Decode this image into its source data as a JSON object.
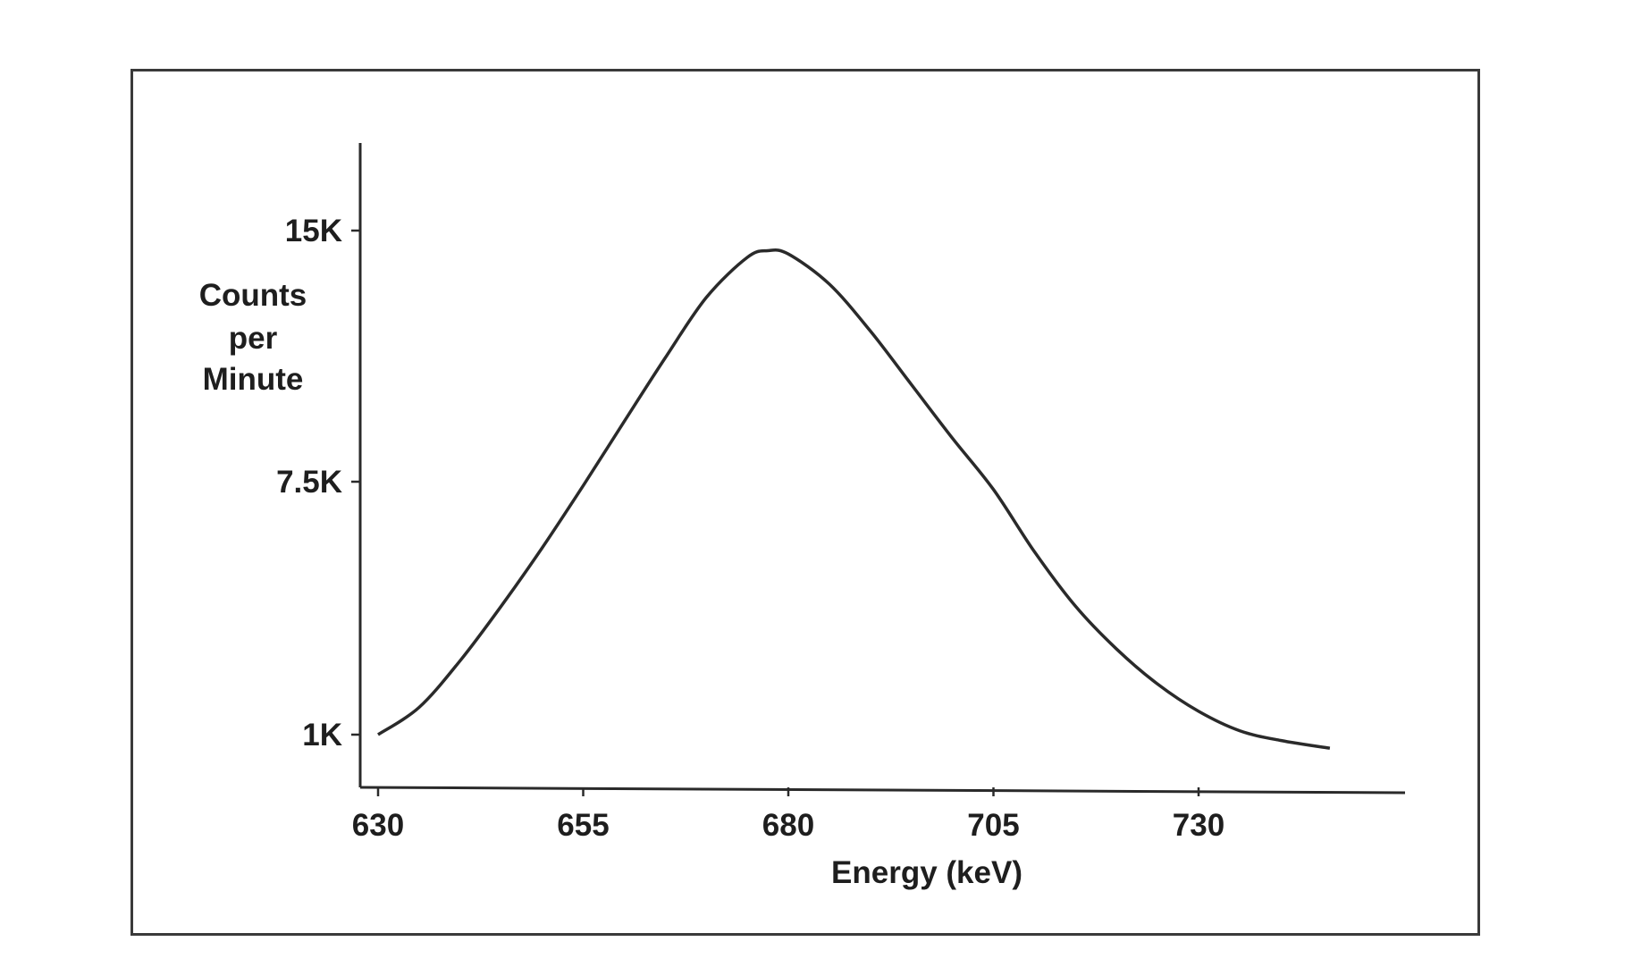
{
  "chart_data": {
    "type": "line",
    "title": "",
    "xlabel": "Energy (keV)",
    "ylabel_lines": [
      "Counts",
      "per",
      "Minute"
    ],
    "x_ticks": [
      630,
      655,
      680,
      705,
      730
    ],
    "x_tick_labels": [
      "630",
      "655",
      "680",
      "705",
      "730"
    ],
    "y_ticks": [
      1000,
      7500,
      15000
    ],
    "y_tick_labels": [
      "1K",
      "7.5K",
      "15K"
    ],
    "xlim": [
      630,
      747
    ],
    "ylim": [
      1000,
      15000
    ],
    "grid": false,
    "legend": "none",
    "series": [
      {
        "x": [
          630,
          635,
          640,
          645,
          650,
          655,
          660,
          665,
          670,
          675,
          677.5,
          680,
          685,
          690,
          695,
          700,
          705,
          710,
          715,
          720,
          725,
          730,
          735,
          740,
          746
        ],
        "y": [
          1000,
          1700,
          2900,
          4300,
          5800,
          7400,
          9300,
          11200,
          13000,
          14200,
          14400,
          14300,
          13400,
          12000,
          10400,
          8800,
          7300,
          5700,
          4300,
          3200,
          2300,
          1600,
          1100,
          850,
          650
        ]
      }
    ]
  }
}
